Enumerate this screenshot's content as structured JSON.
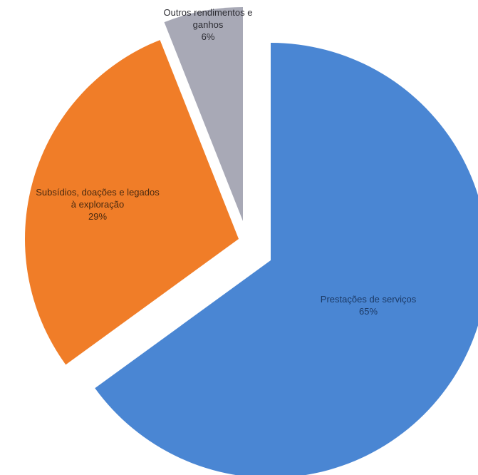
{
  "chart_data": {
    "type": "pie",
    "exploded": true,
    "slices": [
      {
        "name": "Prestações de serviços",
        "value": 65,
        "display": "65%",
        "color": "#4a86d3",
        "label_color": "#1c3a66"
      },
      {
        "name": "Subsídios, doações e legados à exploração",
        "value": 29,
        "display": "29%",
        "color": "#f07d28",
        "label_color": "#4a2a10"
      },
      {
        "name": "Outros rendimentos e ganhos",
        "value": 6,
        "display": "6%",
        "color": "#a8a9b6",
        "label_color": "#2c2c32"
      }
    ],
    "legend": "none"
  }
}
